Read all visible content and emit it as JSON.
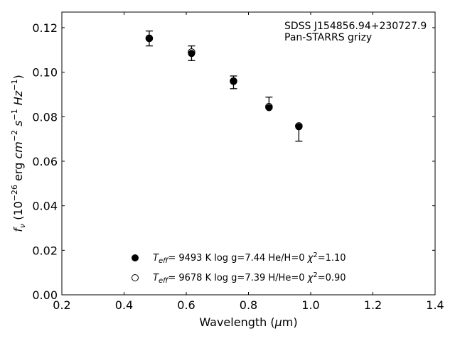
{
  "chart_data": {
    "type": "scatter",
    "xlim": [
      0.2,
      1.4
    ],
    "ylim": [
      0.0,
      0.127
    ],
    "grid": false,
    "xticks": [
      "0.2",
      "0.4",
      "0.6",
      "0.8",
      "1.0",
      "1.2",
      "1.4"
    ],
    "yticks": [
      "0.00",
      "0.02",
      "0.04",
      "0.06",
      "0.08",
      "0.10",
      "0.12"
    ],
    "xlabel": {
      "pre": "Wavelength (",
      "mu": "μ",
      "post": "m)"
    },
    "ylabel": {
      "f": "f",
      "nu": "ν",
      "a": " (10",
      "exp1": "−26",
      "b": " erg ",
      "cm": "cm",
      "exp2": "−2",
      "c": " ",
      "s": "s",
      "exp3": "−1",
      "d": " ",
      "hz": "Hz",
      "exp4": "−1",
      "e": ")"
    },
    "annotation": {
      "line1": "SDSS J154856.94+230727.9",
      "line2": "Pan-STARRS grizy"
    },
    "series": [
      {
        "marker": "filled",
        "x": [
          0.481,
          0.617,
          0.752,
          0.866,
          0.962
        ],
        "y": [
          0.1152,
          0.1084,
          0.0958,
          0.0841,
          0.0755
        ]
      },
      {
        "marker": "open",
        "x": [
          0.481,
          0.617,
          0.752,
          0.866,
          0.962
        ],
        "y": [
          0.1152,
          0.109,
          0.096,
          0.0845,
          0.0758
        ]
      }
    ],
    "observed": {
      "x": [
        0.481,
        0.617,
        0.752,
        0.866,
        0.962
      ],
      "y_low": [
        0.1118,
        0.1052,
        0.0926,
        0.0838,
        0.069
      ],
      "y_high": [
        0.1185,
        0.1118,
        0.0983,
        0.0888,
        0.0763
      ]
    },
    "legend": [
      {
        "marker": "filled",
        "t": "T",
        "eff": "eff",
        "rest": "=  9493 K  log g=7.44  He/H=0  ",
        "chi": "χ",
        "sq": "2",
        "chival": "=1.10"
      },
      {
        "marker": "open",
        "t": "T",
        "eff": "eff",
        "rest": "=  9678 K  log g=7.39  H/He=0  ",
        "chi": "χ",
        "sq": "2",
        "chival": "=0.90"
      }
    ]
  }
}
